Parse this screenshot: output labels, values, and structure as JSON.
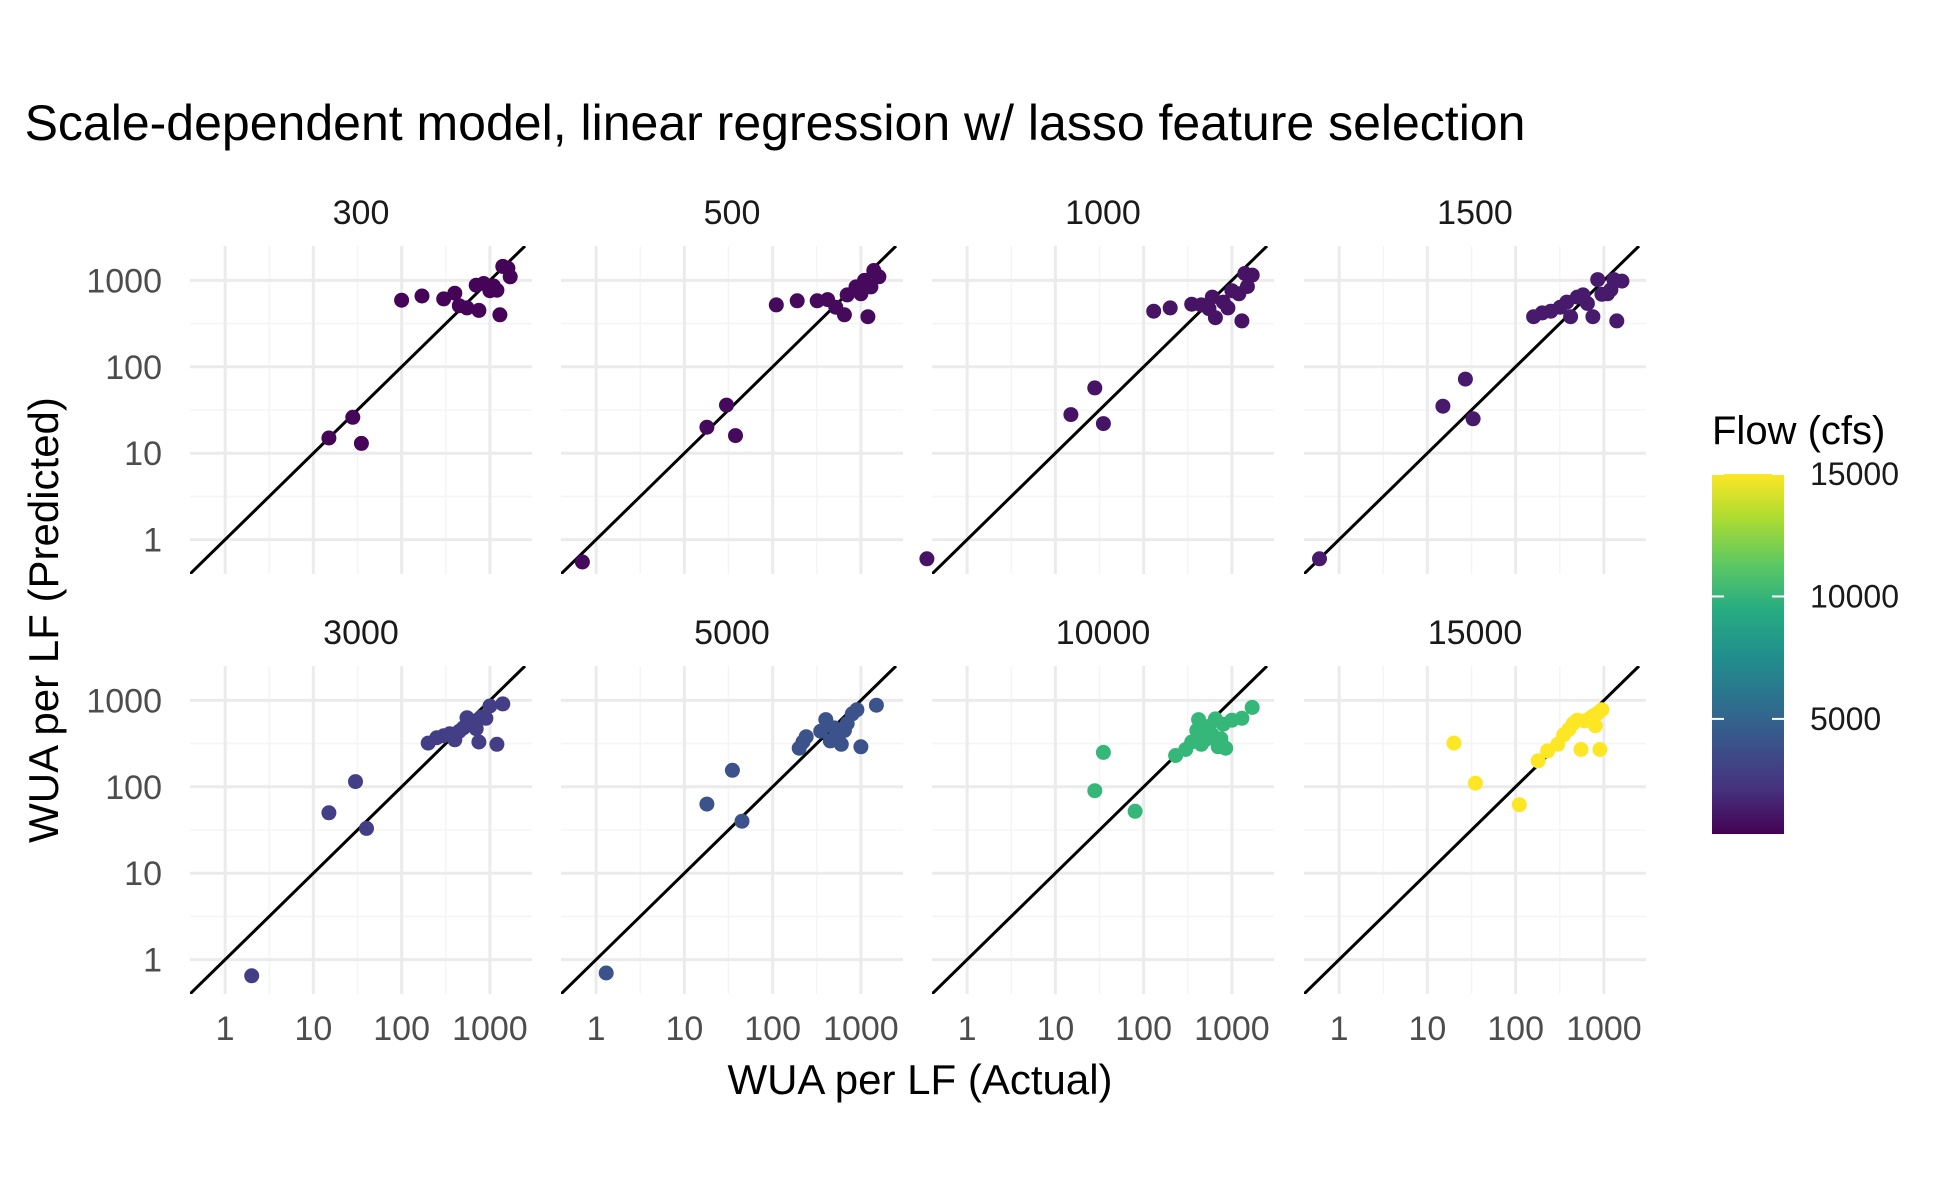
{
  "chart_data": {
    "type": "scatter",
    "title": "Scale-dependent model, linear regression w/ lasso feature selection",
    "xlabel": "WUA per LF (Actual)",
    "ylabel": "WUA per LF (Predicted)",
    "x_scale": "log10",
    "y_scale": "log10",
    "xlim": [
      0.4,
      3000
    ],
    "ylim": [
      0.4,
      2500
    ],
    "x_ticks": [
      1,
      10,
      100,
      1000
    ],
    "x_tick_labels": [
      "1",
      "10",
      "100",
      "1000"
    ],
    "y_ticks": [
      1,
      10,
      100,
      1000
    ],
    "y_tick_labels": [
      "1",
      "10",
      "100",
      "1000"
    ],
    "reference_line": "y = x",
    "grid": true,
    "legend": {
      "title": "Flow (cfs)",
      "type": "colorbar",
      "placement": "right",
      "range": [
        300,
        15000
      ],
      "breaks": [
        5000,
        10000,
        15000
      ],
      "break_labels": [
        "5000",
        "10000",
        "15000"
      ],
      "colormap": "viridis"
    },
    "facets": [
      {
        "label": "300",
        "flow": 300,
        "color": "#450457",
        "points": [
          [
            15,
            15
          ],
          [
            28,
            26
          ],
          [
            35,
            13
          ],
          [
            100,
            590
          ],
          [
            170,
            660
          ],
          [
            300,
            610
          ],
          [
            400,
            710
          ],
          [
            450,
            510
          ],
          [
            550,
            480
          ],
          [
            700,
            880
          ],
          [
            750,
            450
          ],
          [
            850,
            920
          ],
          [
            1000,
            760
          ],
          [
            1100,
            860
          ],
          [
            1200,
            770
          ],
          [
            1300,
            400
          ],
          [
            1400,
            1450
          ],
          [
            1600,
            1380
          ],
          [
            1700,
            1100
          ]
        ]
      },
      {
        "label": "500",
        "flow": 500,
        "color": "#460A5D",
        "points": [
          [
            0.7,
            0.55
          ],
          [
            18,
            20
          ],
          [
            30,
            36
          ],
          [
            38,
            16
          ],
          [
            110,
            520
          ],
          [
            190,
            580
          ],
          [
            320,
            580
          ],
          [
            420,
            600
          ],
          [
            520,
            490
          ],
          [
            650,
            400
          ],
          [
            700,
            680
          ],
          [
            880,
            840
          ],
          [
            1000,
            700
          ],
          [
            1100,
            1000
          ],
          [
            1200,
            380
          ],
          [
            1300,
            840
          ],
          [
            1400,
            1300
          ],
          [
            1600,
            1100
          ]
        ]
      },
      {
        "label": "1000",
        "flow": 1000,
        "color": "#471365",
        "points": [
          [
            0.35,
            0.6
          ],
          [
            15,
            28
          ],
          [
            28,
            57
          ],
          [
            35,
            22
          ],
          [
            130,
            440
          ],
          [
            200,
            480
          ],
          [
            350,
            530
          ],
          [
            450,
            520
          ],
          [
            550,
            470
          ],
          [
            600,
            640
          ],
          [
            650,
            370
          ],
          [
            800,
            560
          ],
          [
            900,
            480
          ],
          [
            1000,
            760
          ],
          [
            1200,
            700
          ],
          [
            1300,
            340
          ],
          [
            1400,
            1200
          ],
          [
            1500,
            850
          ],
          [
            1700,
            1150
          ]
        ]
      },
      {
        "label": "1500",
        "flow": 1500,
        "color": "#481A6C",
        "points": [
          [
            0.6,
            0.6
          ],
          [
            15,
            35
          ],
          [
            27,
            72
          ],
          [
            33,
            25
          ],
          [
            160,
            380
          ],
          [
            200,
            420
          ],
          [
            250,
            440
          ],
          [
            320,
            490
          ],
          [
            380,
            560
          ],
          [
            420,
            380
          ],
          [
            500,
            640
          ],
          [
            580,
            680
          ],
          [
            650,
            540
          ],
          [
            750,
            380
          ],
          [
            850,
            1020
          ],
          [
            950,
            690
          ],
          [
            1100,
            700
          ],
          [
            1200,
            780
          ],
          [
            1300,
            1020
          ],
          [
            1400,
            340
          ],
          [
            1600,
            980
          ]
        ]
      },
      {
        "label": "3000",
        "flow": 3000,
        "color": "#433E85",
        "points": [
          [
            2,
            0.65
          ],
          [
            15,
            50
          ],
          [
            30,
            115
          ],
          [
            40,
            33
          ],
          [
            200,
            320
          ],
          [
            250,
            370
          ],
          [
            300,
            390
          ],
          [
            350,
            410
          ],
          [
            400,
            350
          ],
          [
            450,
            440
          ],
          [
            500,
            480
          ],
          [
            550,
            630
          ],
          [
            600,
            560
          ],
          [
            700,
            470
          ],
          [
            750,
            330
          ],
          [
            800,
            640
          ],
          [
            900,
            620
          ],
          [
            1000,
            860
          ],
          [
            1200,
            310
          ],
          [
            1400,
            910
          ]
        ]
      },
      {
        "label": "5000",
        "flow": 5000,
        "color": "#3B528B",
        "points": [
          [
            1.3,
            0.7
          ],
          [
            18,
            63
          ],
          [
            35,
            155
          ],
          [
            45,
            40
          ],
          [
            200,
            280
          ],
          [
            220,
            330
          ],
          [
            240,
            380
          ],
          [
            350,
            440
          ],
          [
            400,
            600
          ],
          [
            450,
            340
          ],
          [
            500,
            480
          ],
          [
            550,
            360
          ],
          [
            600,
            310
          ],
          [
            650,
            450
          ],
          [
            700,
            540
          ],
          [
            800,
            700
          ],
          [
            900,
            780
          ],
          [
            1000,
            290
          ],
          [
            1500,
            880
          ]
        ]
      },
      {
        "label": "10000",
        "flow": 10000,
        "color": "#35B779",
        "points": [
          [
            28,
            90
          ],
          [
            35,
            250
          ],
          [
            80,
            52
          ],
          [
            230,
            230
          ],
          [
            300,
            270
          ],
          [
            350,
            330
          ],
          [
            400,
            450
          ],
          [
            420,
            600
          ],
          [
            450,
            310
          ],
          [
            500,
            350
          ],
          [
            550,
            500
          ],
          [
            600,
            400
          ],
          [
            650,
            610
          ],
          [
            700,
            290
          ],
          [
            750,
            360
          ],
          [
            800,
            530
          ],
          [
            850,
            280
          ],
          [
            1000,
            590
          ],
          [
            1300,
            620
          ],
          [
            1700,
            830
          ]
        ]
      },
      {
        "label": "15000",
        "flow": 15000,
        "color": "#FDE725",
        "points": [
          [
            20,
            320
          ],
          [
            35,
            110
          ],
          [
            110,
            62
          ],
          [
            180,
            200
          ],
          [
            230,
            260
          ],
          [
            300,
            310
          ],
          [
            350,
            400
          ],
          [
            400,
            460
          ],
          [
            450,
            540
          ],
          [
            500,
            590
          ],
          [
            550,
            270
          ],
          [
            600,
            580
          ],
          [
            700,
            620
          ],
          [
            750,
            660
          ],
          [
            800,
            510
          ],
          [
            850,
            710
          ],
          [
            900,
            270
          ],
          [
            950,
            780
          ]
        ]
      }
    ]
  }
}
